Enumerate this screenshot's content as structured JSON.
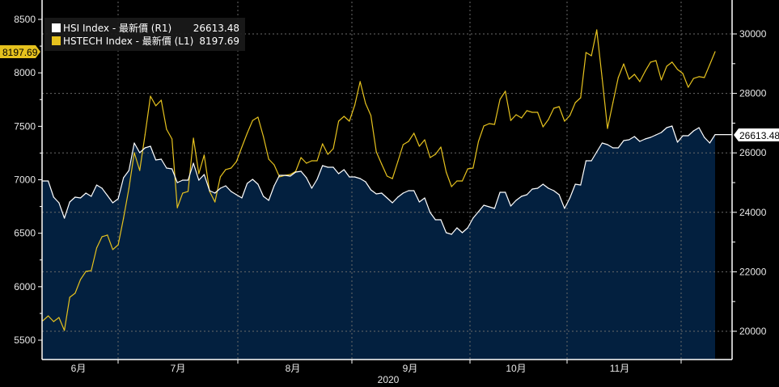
{
  "chart_data": {
    "type": "line",
    "title": "",
    "xlabel": "2020",
    "x_tick_labels": [
      "6月",
      "7月",
      "8月",
      "9月",
      "10月",
      "11月"
    ],
    "left_axis": {
      "ticks": [
        5500,
        6000,
        6500,
        7000,
        7500,
        8000,
        8500
      ],
      "ylim": [
        5390,
        8620
      ]
    },
    "right_axis": {
      "ticks": [
        20000,
        22000,
        24000,
        26000,
        28000,
        30000
      ],
      "ylim": [
        19010,
        30880
      ]
    },
    "grid": true,
    "legend_position": "top-left",
    "series": [
      {
        "name": "HSI Index - 最新價 (R1)",
        "last_value_label": "26613.48",
        "axis": "right",
        "style": "area",
        "color": "#ffffff",
        "fill": "#03203f",
        "values": [
          25055,
          25055,
          24512,
          24321,
          23805,
          24349,
          24512,
          24484,
          24647,
          24539,
          24919,
          24811,
          24566,
          24321,
          24457,
          25164,
          25408,
          26332,
          26006,
          26169,
          26223,
          25761,
          25789,
          25490,
          25463,
          25001,
          25082,
          25082,
          25653,
          25082,
          25272,
          24729,
          24647,
          24811,
          24892,
          24702,
          24593,
          24484,
          24974,
          25109,
          24946,
          24539,
          24403,
          24892,
          25245,
          25245,
          25218,
          25354,
          25381,
          25164,
          24811,
          25109,
          25571,
          25517,
          25517,
          25300,
          25435,
          25191,
          25191,
          25137,
          25028,
          24756,
          24620,
          24647,
          24484,
          24321,
          24512,
          24647,
          24729,
          24729,
          24349,
          24484,
          23995,
          23751,
          23751,
          23316,
          23262,
          23479,
          23316,
          23479,
          23805,
          24023,
          24240,
          24186,
          24131,
          24675,
          24675,
          24213,
          24403,
          24539,
          24593,
          24783,
          24811,
          24946,
          24811,
          24729,
          24593,
          24131,
          24484,
          24946,
          24919,
          25734,
          25734,
          26033,
          26332,
          26278,
          26169,
          26169,
          26414,
          26441,
          26549,
          26386,
          26468,
          26522,
          26604,
          26685,
          26848,
          26903,
          26359,
          26577,
          26577,
          26740,
          26848,
          26522,
          26332,
          26613.48
        ]
      },
      {
        "name": "HSTECH Index - 最新價 (L1)",
        "last_value_label": "8197.69",
        "axis": "left",
        "style": "line",
        "color": "#e6c21e",
        "values": [
          5682,
          5727,
          5674,
          5712,
          5591,
          5901,
          5939,
          6067,
          6143,
          6150,
          6362,
          6467,
          6483,
          6347,
          6392,
          6641,
          6921,
          7253,
          7087,
          7420,
          7782,
          7692,
          7744,
          7472,
          7382,
          6739,
          6875,
          6891,
          7389,
          7057,
          7231,
          6891,
          6792,
          7027,
          7095,
          7110,
          7170,
          7306,
          7435,
          7555,
          7586,
          7404,
          7193,
          7140,
          7027,
          7042,
          7049,
          7079,
          7208,
          7155,
          7178,
          7178,
          7336,
          7238,
          7291,
          7548,
          7593,
          7548,
          7699,
          7918,
          7714,
          7601,
          7261,
          7147,
          7034,
          7011,
          7170,
          7329,
          7359,
          7435,
          7314,
          7374,
          7208,
          7238,
          7306,
          7072,
          6936,
          6989,
          6989,
          7102,
          7110,
          7359,
          7503,
          7525,
          7518,
          7752,
          7828,
          7555,
          7608,
          7578,
          7646,
          7631,
          7631,
          7495,
          7563,
          7669,
          7684,
          7548,
          7601,
          7722,
          7767,
          8190,
          8160,
          8402,
          7948,
          7480,
          7722,
          7956,
          8084,
          7941,
          7986,
          7918,
          8016,
          8100,
          8115,
          7933,
          8062,
          8100,
          8032,
          7994,
          7865,
          7948,
          7964,
          7956,
          8077,
          8197.69
        ]
      }
    ]
  }
}
